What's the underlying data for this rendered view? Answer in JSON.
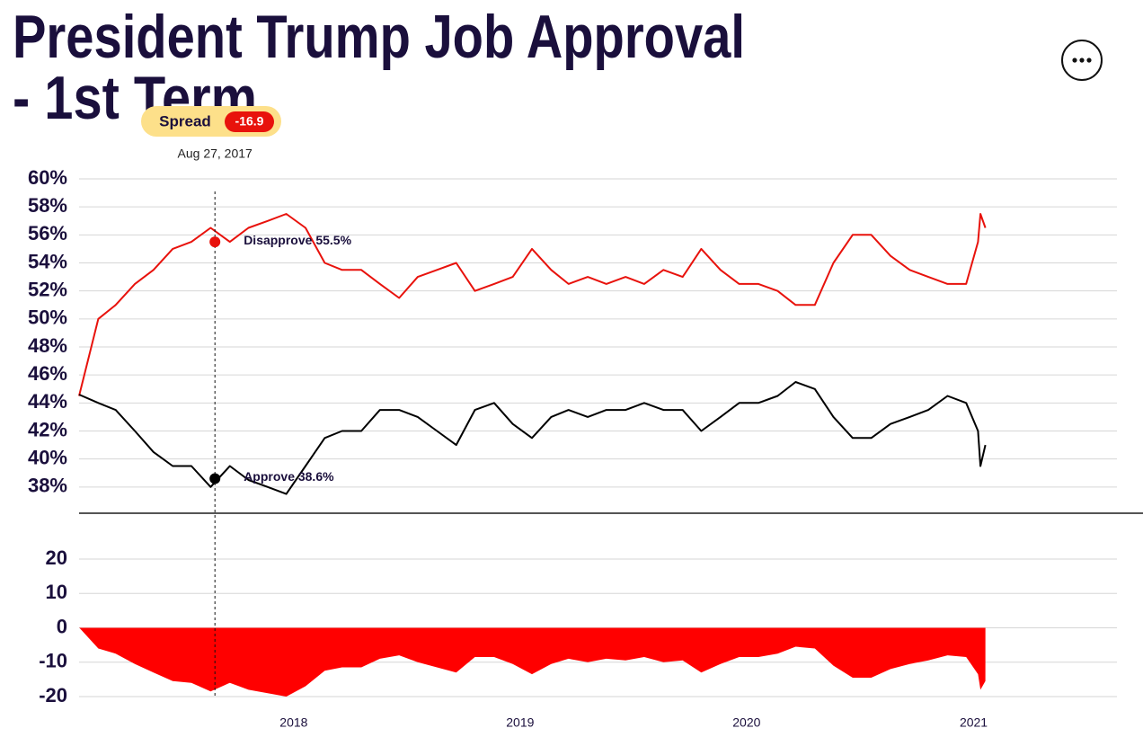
{
  "chart_data": {
    "type": "line",
    "title": "President Trump Job Approval",
    "subtitle": "- 1st Term",
    "x": [
      "2017-01-20",
      "2017-02-20",
      "2017-03-20",
      "2017-04-20",
      "2017-05-20",
      "2017-06-20",
      "2017-07-20",
      "2017-08-20",
      "2017-09-20",
      "2017-10-20",
      "2017-11-20",
      "2017-12-20",
      "2018-01-20",
      "2018-02-20",
      "2018-03-20",
      "2018-04-20",
      "2018-05-20",
      "2018-06-20",
      "2018-07-20",
      "2018-08-20",
      "2018-09-20",
      "2018-10-20",
      "2018-11-20",
      "2018-12-20",
      "2019-01-20",
      "2019-02-20",
      "2019-03-20",
      "2019-04-20",
      "2019-05-20",
      "2019-06-20",
      "2019-07-20",
      "2019-08-20",
      "2019-09-20",
      "2019-10-20",
      "2019-11-20",
      "2019-12-20",
      "2020-01-20",
      "2020-02-20",
      "2020-03-20",
      "2020-04-20",
      "2020-05-20",
      "2020-06-20",
      "2020-07-20",
      "2020-08-20",
      "2020-09-20",
      "2020-10-20",
      "2020-11-20",
      "2020-12-20",
      "2021-01-08",
      "2021-01-12",
      "2021-01-20"
    ],
    "series": [
      {
        "name": "Disapprove",
        "color": "#e8120c",
        "values": [
          44.5,
          50.0,
          51.0,
          52.5,
          53.5,
          55.0,
          55.5,
          56.5,
          55.5,
          56.5,
          57.0,
          57.5,
          56.5,
          54.0,
          53.5,
          53.5,
          52.5,
          51.5,
          53.0,
          53.5,
          54.0,
          52.0,
          52.5,
          53.0,
          55.0,
          53.5,
          52.5,
          53.0,
          52.5,
          53.0,
          52.5,
          53.5,
          53.0,
          55.0,
          53.5,
          52.5,
          52.5,
          52.0,
          51.0,
          51.0,
          54.0,
          56.0,
          56.0,
          54.5,
          53.5,
          53.0,
          52.5,
          52.5,
          55.5,
          57.5,
          56.5
        ]
      },
      {
        "name": "Approve",
        "color": "#000000",
        "values": [
          44.6,
          44.0,
          43.5,
          42.0,
          40.5,
          39.5,
          39.5,
          38.0,
          39.5,
          38.5,
          38.0,
          37.5,
          39.5,
          41.5,
          42.0,
          42.0,
          43.5,
          43.5,
          43.0,
          42.0,
          41.0,
          43.5,
          44.0,
          42.5,
          41.5,
          43.0,
          43.5,
          43.0,
          43.5,
          43.5,
          44.0,
          43.5,
          43.5,
          42.0,
          43.0,
          44.0,
          44.0,
          44.5,
          45.5,
          45.0,
          43.0,
          41.5,
          41.5,
          42.5,
          43.0,
          43.5,
          44.5,
          44.0,
          42.0,
          39.5,
          41.0
        ]
      }
    ],
    "spread": {
      "color": "#ff0000",
      "values": [
        0.1,
        -6.0,
        -7.5,
        -10.5,
        -13.0,
        -15.5,
        -16.0,
        -18.5,
        -16.0,
        -18.0,
        -19.0,
        -20.0,
        -17.0,
        -12.5,
        -11.5,
        -11.5,
        -9.0,
        -8.0,
        -10.0,
        -11.5,
        -13.0,
        -8.5,
        -8.5,
        -10.5,
        -13.5,
        -10.5,
        -9.0,
        -10.0,
        -9.0,
        -9.5,
        -8.5,
        -10.0,
        -9.5,
        -13.0,
        -10.5,
        -8.5,
        -8.5,
        -7.5,
        -5.5,
        -6.0,
        -11.0,
        -14.5,
        -14.5,
        -12.0,
        -10.5,
        -9.5,
        -8.0,
        -8.5,
        -13.5,
        -18.0,
        -15.5
      ],
      "ylim": [
        -20,
        20
      ],
      "yticks": [
        20,
        10,
        0,
        -10,
        -20
      ]
    },
    "xlim": [
      "2017-01-20",
      "2021-08-20"
    ],
    "xticks": [
      {
        "value": "2018-01-01",
        "label": "2018"
      },
      {
        "value": "2019-01-01",
        "label": "2019"
      },
      {
        "value": "2020-01-01",
        "label": "2020"
      },
      {
        "value": "2021-01-01",
        "label": "2021"
      }
    ],
    "ylim": [
      36,
      60
    ],
    "yticks": [
      {
        "value": 60,
        "label": "60%"
      },
      {
        "value": 58,
        "label": "58%"
      },
      {
        "value": 56,
        "label": "56%"
      },
      {
        "value": 54,
        "label": "54%"
      },
      {
        "value": 52,
        "label": "52%"
      },
      {
        "value": 50,
        "label": "50%"
      },
      {
        "value": 48,
        "label": "48%"
      },
      {
        "value": 46,
        "label": "46%"
      },
      {
        "value": 44,
        "label": "44%"
      },
      {
        "value": 42,
        "label": "42%"
      },
      {
        "value": 40,
        "label": "40%"
      },
      {
        "value": 38,
        "label": "38%"
      }
    ],
    "grid": true,
    "hover": {
      "x": "2017-08-27",
      "date_label": "Aug 27, 2017",
      "disapprove": 55.5,
      "disapprove_label": "Disapprove 55.5%",
      "approve": 38.6,
      "approve_label": "Approve 38.6%",
      "spread_label": "Spread",
      "spread": -16.9
    }
  }
}
